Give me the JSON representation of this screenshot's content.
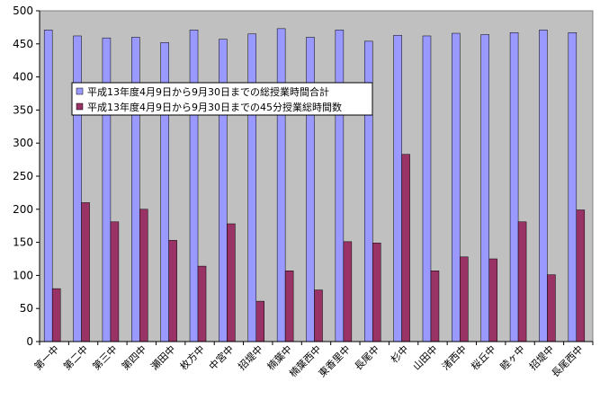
{
  "chart_data": {
    "type": "bar",
    "categories": [
      "第一中",
      "第二中",
      "第三中",
      "第四中",
      "瀬田中",
      "枚方中",
      "中宮中",
      "招堤中",
      "楠葉中",
      "楠葉西中",
      "東香里中",
      "長尾中",
      "杉中",
      "山田中",
      "渚西中",
      "桜丘中",
      "睦ヶ中",
      "招堤中",
      "長尾西中"
    ],
    "series": [
      {
        "name": "平成13年度4月9日から9月30日までの総授業時間合計",
        "color": "#9999ff",
        "values": [
          471,
          462,
          459,
          460,
          452,
          471,
          457,
          465,
          473,
          460,
          471,
          454,
          463,
          462,
          466,
          464,
          467,
          471,
          467
        ]
      },
      {
        "name": "平成13年度4月9日から9月30日までの45分授業総時間数",
        "color": "#993366",
        "values": [
          80,
          210,
          181,
          200,
          153,
          114,
          178,
          61,
          107,
          78,
          151,
          149,
          283,
          107,
          128,
          125,
          181,
          101,
          199
        ]
      }
    ],
    "ylim": [
      0,
      500
    ],
    "yticks": [
      0,
      50,
      100,
      150,
      200,
      250,
      300,
      350,
      400,
      450,
      500
    ],
    "grid": false,
    "legend_position": "upper-left",
    "plot_background": "#c0c0c0"
  }
}
